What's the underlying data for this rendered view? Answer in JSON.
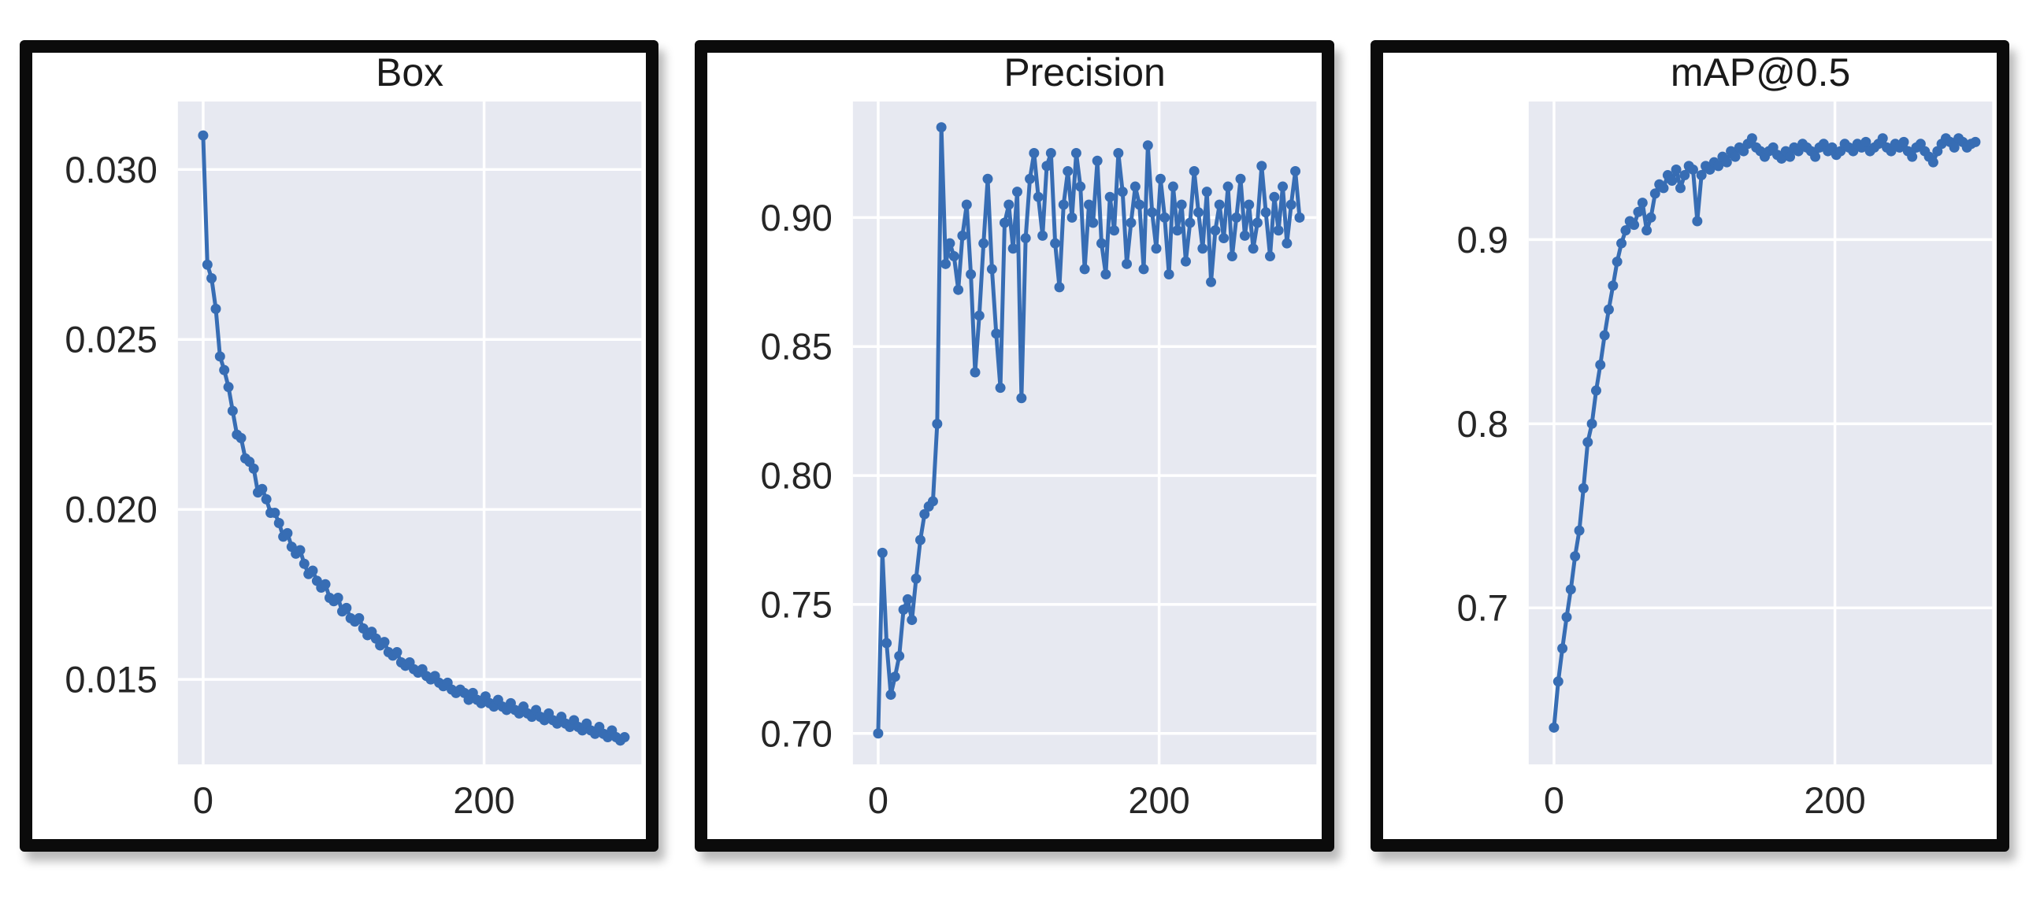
{
  "page": {
    "background": "#ffffff"
  },
  "style": {
    "accent": "#376db4",
    "plot_bg": "#e7e9f1",
    "grid_color": "#ffffff",
    "panel_border": "#0b0b0b",
    "text_color": "#262626",
    "title_color": "#1a1a1a"
  },
  "chart_data": [
    {
      "type": "line",
      "title": "Box",
      "xlabel": "",
      "ylabel": "",
      "legend": "none",
      "grid": true,
      "marker": "circle",
      "xlim": [
        -18,
        312
      ],
      "ylim": [
        0.0125,
        0.032
      ],
      "xticks": [
        0,
        200
      ],
      "xtick_labels": [
        "0",
        "200"
      ],
      "yticks": [
        0.03,
        0.025,
        0.02,
        0.015
      ],
      "ytick_labels": [
        "0.030",
        "0.025",
        "0.020",
        "0.015"
      ],
      "x": [
        0,
        3,
        6,
        9,
        12,
        15,
        18,
        21,
        24,
        27,
        30,
        33,
        36,
        39,
        42,
        45,
        48,
        51,
        54,
        57,
        60,
        63,
        66,
        69,
        72,
        75,
        78,
        81,
        84,
        87,
        90,
        93,
        96,
        99,
        102,
        105,
        108,
        111,
        114,
        117,
        120,
        123,
        126,
        129,
        132,
        135,
        138,
        141,
        144,
        147,
        150,
        153,
        156,
        159,
        162,
        165,
        168,
        171,
        174,
        177,
        180,
        183,
        186,
        189,
        192,
        195,
        198,
        201,
        204,
        207,
        210,
        213,
        216,
        219,
        222,
        225,
        228,
        231,
        234,
        237,
        240,
        243,
        246,
        249,
        252,
        255,
        258,
        261,
        264,
        267,
        270,
        273,
        276,
        279,
        282,
        285,
        288,
        291,
        294,
        297,
        300
      ],
      "y": [
        0.031,
        0.0272,
        0.0268,
        0.0259,
        0.0245,
        0.0241,
        0.0236,
        0.0229,
        0.0222,
        0.0221,
        0.0215,
        0.0214,
        0.0212,
        0.0205,
        0.0206,
        0.0203,
        0.0199,
        0.0199,
        0.0196,
        0.0192,
        0.0193,
        0.0189,
        0.0187,
        0.0188,
        0.0184,
        0.0181,
        0.0182,
        0.0179,
        0.0177,
        0.0178,
        0.0174,
        0.0173,
        0.0174,
        0.017,
        0.0171,
        0.0168,
        0.0167,
        0.0168,
        0.0165,
        0.0163,
        0.0164,
        0.0162,
        0.016,
        0.0161,
        0.0158,
        0.0157,
        0.0158,
        0.0155,
        0.0154,
        0.0155,
        0.0153,
        0.0152,
        0.0153,
        0.0151,
        0.015,
        0.0151,
        0.0149,
        0.0148,
        0.0149,
        0.0147,
        0.0146,
        0.0147,
        0.0146,
        0.0144,
        0.0146,
        0.0144,
        0.0143,
        0.0145,
        0.0143,
        0.0142,
        0.0144,
        0.0142,
        0.0141,
        0.0143,
        0.0141,
        0.014,
        0.0142,
        0.014,
        0.0139,
        0.0141,
        0.0139,
        0.0138,
        0.014,
        0.0138,
        0.0137,
        0.0139,
        0.0137,
        0.0136,
        0.0138,
        0.0136,
        0.0135,
        0.0137,
        0.0135,
        0.0134,
        0.0136,
        0.0134,
        0.0133,
        0.0135,
        0.0133,
        0.0132,
        0.0133
      ]
    },
    {
      "type": "line",
      "title": "Precision",
      "xlabel": "",
      "ylabel": "",
      "legend": "none",
      "grid": true,
      "marker": "circle",
      "xlim": [
        -18,
        312
      ],
      "ylim": [
        0.688,
        0.945
      ],
      "xticks": [
        0,
        200
      ],
      "xtick_labels": [
        "0",
        "200"
      ],
      "yticks": [
        0.9,
        0.85,
        0.8,
        0.75,
        0.7
      ],
      "ytick_labels": [
        "0.90",
        "0.85",
        "0.80",
        "0.75",
        "0.70"
      ],
      "x": [
        0,
        3,
        6,
        9,
        12,
        15,
        18,
        21,
        24,
        27,
        30,
        33,
        36,
        39,
        42,
        45,
        48,
        51,
        54,
        57,
        60,
        63,
        66,
        69,
        72,
        75,
        78,
        81,
        84,
        87,
        90,
        93,
        96,
        99,
        102,
        105,
        108,
        111,
        114,
        117,
        120,
        123,
        126,
        129,
        132,
        135,
        138,
        141,
        144,
        147,
        150,
        153,
        156,
        159,
        162,
        165,
        168,
        171,
        174,
        177,
        180,
        183,
        186,
        189,
        192,
        195,
        198,
        201,
        204,
        207,
        210,
        213,
        216,
        219,
        222,
        225,
        228,
        231,
        234,
        237,
        240,
        243,
        246,
        249,
        252,
        255,
        258,
        261,
        264,
        267,
        270,
        273,
        276,
        279,
        282,
        285,
        288,
        291,
        294,
        297,
        300
      ],
      "y": [
        0.7,
        0.77,
        0.735,
        0.715,
        0.722,
        0.73,
        0.748,
        0.752,
        0.744,
        0.76,
        0.775,
        0.785,
        0.788,
        0.79,
        0.82,
        0.935,
        0.882,
        0.89,
        0.885,
        0.872,
        0.893,
        0.905,
        0.878,
        0.84,
        0.862,
        0.89,
        0.915,
        0.88,
        0.855,
        0.834,
        0.898,
        0.905,
        0.888,
        0.91,
        0.83,
        0.892,
        0.915,
        0.925,
        0.908,
        0.893,
        0.92,
        0.925,
        0.89,
        0.873,
        0.905,
        0.918,
        0.9,
        0.925,
        0.912,
        0.88,
        0.905,
        0.898,
        0.922,
        0.89,
        0.878,
        0.908,
        0.895,
        0.925,
        0.91,
        0.882,
        0.898,
        0.912,
        0.905,
        0.88,
        0.928,
        0.902,
        0.888,
        0.915,
        0.9,
        0.878,
        0.912,
        0.895,
        0.905,
        0.883,
        0.898,
        0.918,
        0.902,
        0.888,
        0.91,
        0.875,
        0.895,
        0.905,
        0.892,
        0.912,
        0.885,
        0.9,
        0.915,
        0.893,
        0.905,
        0.888,
        0.898,
        0.92,
        0.902,
        0.885,
        0.908,
        0.895,
        0.912,
        0.89,
        0.905,
        0.918,
        0.9
      ]
    },
    {
      "type": "line",
      "title": "mAP@0.5",
      "xlabel": "",
      "ylabel": "",
      "legend": "none",
      "grid": true,
      "marker": "circle",
      "xlim": [
        -18,
        312
      ],
      "ylim": [
        0.615,
        0.975
      ],
      "xticks": [
        0,
        200
      ],
      "xtick_labels": [
        "0",
        "200"
      ],
      "yticks": [
        0.9,
        0.8,
        0.7
      ],
      "ytick_labels": [
        "0.9",
        "0.8",
        "0.7"
      ],
      "x": [
        0,
        3,
        6,
        9,
        12,
        15,
        18,
        21,
        24,
        27,
        30,
        33,
        36,
        39,
        42,
        45,
        48,
        51,
        54,
        57,
        60,
        63,
        66,
        69,
        72,
        75,
        78,
        81,
        84,
        87,
        90,
        93,
        96,
        99,
        102,
        105,
        108,
        111,
        114,
        117,
        120,
        123,
        126,
        129,
        132,
        135,
        138,
        141,
        144,
        147,
        150,
        153,
        156,
        159,
        162,
        165,
        168,
        171,
        174,
        177,
        180,
        183,
        186,
        189,
        192,
        195,
        198,
        201,
        204,
        207,
        210,
        213,
        216,
        219,
        222,
        225,
        228,
        231,
        234,
        237,
        240,
        243,
        246,
        249,
        252,
        255,
        258,
        261,
        264,
        267,
        270,
        273,
        276,
        279,
        282,
        285,
        288,
        291,
        294,
        297,
        300
      ],
      "y": [
        0.635,
        0.66,
        0.678,
        0.695,
        0.71,
        0.728,
        0.742,
        0.765,
        0.79,
        0.8,
        0.818,
        0.832,
        0.848,
        0.862,
        0.875,
        0.888,
        0.898,
        0.905,
        0.91,
        0.908,
        0.915,
        0.92,
        0.905,
        0.912,
        0.925,
        0.93,
        0.928,
        0.935,
        0.932,
        0.938,
        0.928,
        0.935,
        0.94,
        0.938,
        0.91,
        0.935,
        0.94,
        0.938,
        0.942,
        0.94,
        0.945,
        0.942,
        0.948,
        0.945,
        0.95,
        0.948,
        0.952,
        0.955,
        0.95,
        0.948,
        0.945,
        0.948,
        0.95,
        0.946,
        0.944,
        0.948,
        0.945,
        0.95,
        0.948,
        0.952,
        0.95,
        0.948,
        0.945,
        0.95,
        0.952,
        0.948,
        0.95,
        0.946,
        0.948,
        0.952,
        0.95,
        0.948,
        0.952,
        0.95,
        0.953,
        0.948,
        0.95,
        0.952,
        0.955,
        0.95,
        0.948,
        0.952,
        0.95,
        0.953,
        0.948,
        0.945,
        0.95,
        0.952,
        0.948,
        0.945,
        0.942,
        0.948,
        0.952,
        0.955,
        0.953,
        0.95,
        0.955,
        0.953,
        0.95,
        0.952,
        0.953
      ]
    }
  ]
}
